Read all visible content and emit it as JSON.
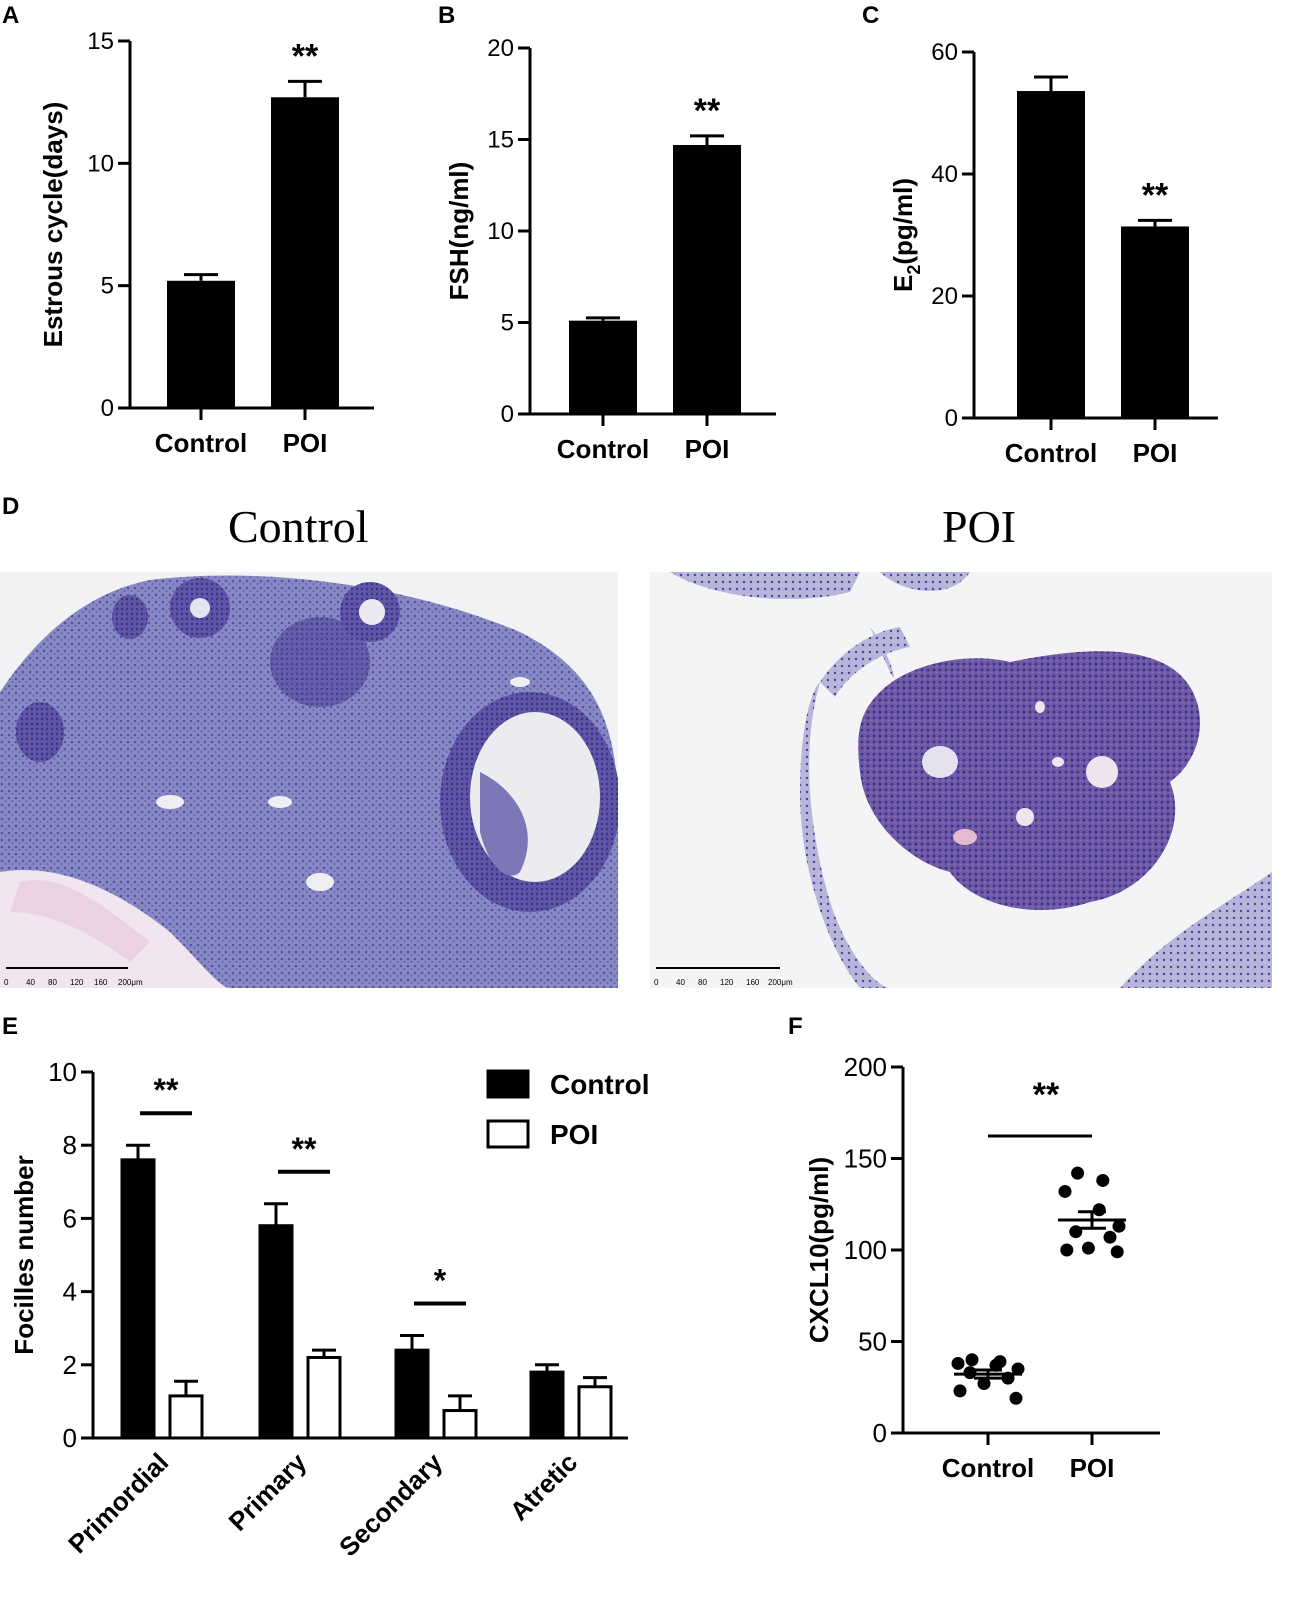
{
  "panel_labels": {
    "a": "A",
    "b": "B",
    "c": "C",
    "d": "D",
    "e": "E",
    "f": "F"
  },
  "histology": {
    "left_title": "Control",
    "right_title": "POI",
    "scale_ticks": [
      "0",
      "40",
      "80",
      "120",
      "160",
      "200μm"
    ],
    "stain_colors": {
      "tissue": "#6f72b6",
      "dense": "#5a4fa2",
      "pale": "#e9e8f1",
      "pink": "#e4b9d2"
    }
  },
  "chart_data": [
    {
      "id": "A",
      "type": "bar",
      "categories": [
        "Control",
        "POI"
      ],
      "values": [
        5.2,
        12.7
      ],
      "errors": [
        0.25,
        0.65
      ],
      "ylabel": "Estrous cycle(days)",
      "ylim": [
        0,
        15
      ],
      "yticks": [
        "0",
        "5",
        "10",
        "15"
      ],
      "annotations": [
        {
          "category": "POI",
          "text": "**"
        }
      ],
      "bar_color": "#000000"
    },
    {
      "id": "B",
      "type": "bar",
      "categories": [
        "Control",
        "POI"
      ],
      "values": [
        5.1,
        14.7
      ],
      "errors": [
        0.15,
        0.5
      ],
      "ylabel": "FSH(ng/ml)",
      "ylim": [
        0,
        20
      ],
      "yticks": [
        "0",
        "5",
        "10",
        "15",
        "20"
      ],
      "annotations": [
        {
          "category": "POI",
          "text": "**"
        }
      ],
      "bar_color": "#000000"
    },
    {
      "id": "C",
      "type": "bar",
      "categories": [
        "Control",
        "POI"
      ],
      "values": [
        53.6,
        31.4
      ],
      "errors": [
        2.3,
        1.0
      ],
      "ylabel_main": "E",
      "ylabel_sub": "2",
      "ylabel_rest": "(pg/ml)",
      "ylim": [
        0,
        60
      ],
      "yticks": [
        "0",
        "20",
        "40",
        "60"
      ],
      "annotations": [
        {
          "category": "POI",
          "text": "**"
        }
      ],
      "bar_color": "#000000"
    },
    {
      "id": "E",
      "type": "bar",
      "categories": [
        "Primordial",
        "Primary",
        "Secondary",
        "Atretic"
      ],
      "series": [
        {
          "name": "Control",
          "values": [
            7.6,
            5.8,
            2.4,
            1.8
          ],
          "errors": [
            0.4,
            0.6,
            0.4,
            0.2
          ],
          "fill": "#000000"
        },
        {
          "name": "POI",
          "values": [
            1.15,
            2.2,
            0.75,
            1.4
          ],
          "errors": [
            0.4,
            0.2,
            0.4,
            0.25
          ],
          "fill": "#ffffff"
        }
      ],
      "ylabel": "Focilles number",
      "ylim": [
        0,
        10
      ],
      "yticks": [
        "0",
        "2",
        "4",
        "6",
        "8",
        "10"
      ],
      "annotations": [
        {
          "category": "Primordial",
          "text": "**"
        },
        {
          "category": "Primary",
          "text": "**"
        },
        {
          "category": "Secondary",
          "text": "*"
        }
      ],
      "legend_position": "top-right"
    },
    {
      "id": "F",
      "type": "scatter",
      "categories": [
        "Control",
        "POI"
      ],
      "groups": [
        {
          "name": "Control",
          "points": [
            40,
            39,
            38,
            37,
            35,
            33,
            30,
            27,
            23,
            19
          ],
          "mean": 32.2,
          "sem": 2.2
        },
        {
          "name": "POI",
          "points": [
            142,
            138,
            132,
            122,
            113,
            110,
            107,
            101,
            100,
            99
          ],
          "mean": 116.4,
          "sem": 4.5
        }
      ],
      "ylabel": "CXCL10(pg/ml)",
      "ylim": [
        0,
        200
      ],
      "yticks": [
        "0",
        "50",
        "100",
        "150",
        "200"
      ],
      "annotations": [
        {
          "between": [
            "Control",
            "POI"
          ],
          "text": "**"
        }
      ]
    }
  ]
}
